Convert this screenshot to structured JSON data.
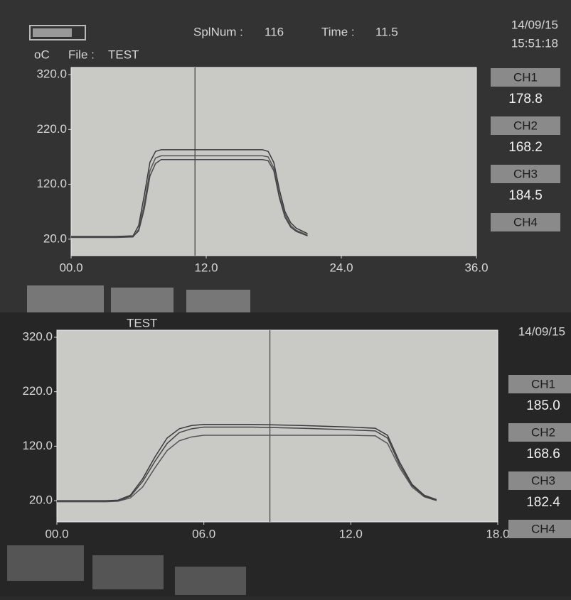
{
  "screens": [
    {
      "unit": "oC",
      "file_label": "File :",
      "file": "TEST",
      "spl_label": "SplNum :",
      "spl": "116",
      "time_label": "Time :",
      "time": "11.5",
      "date": "14/09/15",
      "clock": "15:51:18",
      "channels": [
        {
          "label": "CH1",
          "reading": "178.8"
        },
        {
          "label": "CH2",
          "reading": "168.2"
        },
        {
          "label": "CH3",
          "reading": "184.5"
        },
        {
          "label": "CH4"
        }
      ]
    },
    {
      "file": "TEST",
      "date": "14/09/15",
      "channels": [
        {
          "label": "CH1",
          "reading": "185.0"
        },
        {
          "label": "CH2",
          "reading": "168.6"
        },
        {
          "label": "CH3",
          "reading": "182.4"
        },
        {
          "label": "CH4"
        }
      ]
    }
  ],
  "chart_data": [
    {
      "type": "line",
      "x": [
        0,
        2,
        4,
        5.5,
        6,
        6.5,
        7,
        7.5,
        8,
        10,
        12,
        14,
        16,
        17,
        17.5,
        18,
        18.5,
        19,
        19.5,
        20,
        20.5,
        21
      ],
      "series": [
        {
          "name": "CH1",
          "color": "#3a3a3a",
          "values": [
            25,
            25,
            25,
            26,
            45,
            100,
            160,
            180,
            183,
            183,
            183,
            183,
            183,
            183,
            180,
            160,
            110,
            70,
            50,
            40,
            35,
            30
          ]
        },
        {
          "name": "CH2",
          "color": "#555555",
          "values": [
            23,
            23,
            23,
            24,
            38,
            85,
            145,
            168,
            172,
            172,
            172,
            172,
            172,
            172,
            170,
            150,
            100,
            65,
            45,
            36,
            32,
            27
          ]
        },
        {
          "name": "CH3",
          "color": "#444444",
          "values": [
            24,
            24,
            24,
            25,
            35,
            75,
            135,
            158,
            165,
            165,
            165,
            165,
            165,
            165,
            163,
            145,
            95,
            60,
            42,
            34,
            30,
            26
          ]
        }
      ],
      "cursor_x": 11,
      "xlim": [
        0,
        36
      ],
      "xticks": [
        {
          "value": 0,
          "label": "00.0"
        },
        {
          "value": 12,
          "label": "12.0"
        },
        {
          "value": 24,
          "label": "24.0"
        },
        {
          "value": 36,
          "label": "36.0"
        }
      ],
      "ylim": [
        -10,
        333
      ],
      "yticks": [
        {
          "value": 20,
          "label": "20.0"
        },
        {
          "value": 120,
          "label": "120.0"
        },
        {
          "value": 220,
          "label": "220.0"
        },
        {
          "value": 320,
          "label": "320.0"
        }
      ]
    },
    {
      "type": "line",
      "x": [
        0,
        2,
        2.5,
        3,
        3.5,
        4,
        4.5,
        5,
        5.5,
        6,
        8,
        10,
        12,
        13,
        13.5,
        14,
        14.5,
        15,
        15.5
      ],
      "series": [
        {
          "name": "CH1",
          "color": "#3a3a3a",
          "values": [
            20,
            20,
            21,
            30,
            60,
            100,
            135,
            152,
            158,
            160,
            160,
            158,
            155,
            153,
            140,
            90,
            50,
            30,
            22
          ]
        },
        {
          "name": "CH2",
          "color": "#555555",
          "values": [
            18,
            18,
            19,
            25,
            45,
            80,
            112,
            130,
            137,
            140,
            140,
            140,
            140,
            139,
            125,
            80,
            45,
            27,
            20
          ]
        },
        {
          "name": "CH3",
          "color": "#444444",
          "values": [
            19,
            19,
            20,
            28,
            55,
            92,
            125,
            145,
            152,
            155,
            155,
            153,
            150,
            148,
            135,
            85,
            48,
            28,
            21
          ]
        }
      ],
      "cursor_x": 8.7,
      "xlim": [
        0,
        18
      ],
      "xticks": [
        {
          "value": 0,
          "label": "00.0"
        },
        {
          "value": 6,
          "label": "06.0"
        },
        {
          "value": 12,
          "label": "12.0"
        },
        {
          "value": 18,
          "label": "18.0"
        }
      ],
      "ylim": [
        -19,
        333
      ],
      "yticks": [
        {
          "value": 20,
          "label": "20.0"
        },
        {
          "value": 120,
          "label": "120.0"
        },
        {
          "value": 220,
          "label": "220.0"
        },
        {
          "value": 320,
          "label": "320.0"
        }
      ]
    }
  ]
}
